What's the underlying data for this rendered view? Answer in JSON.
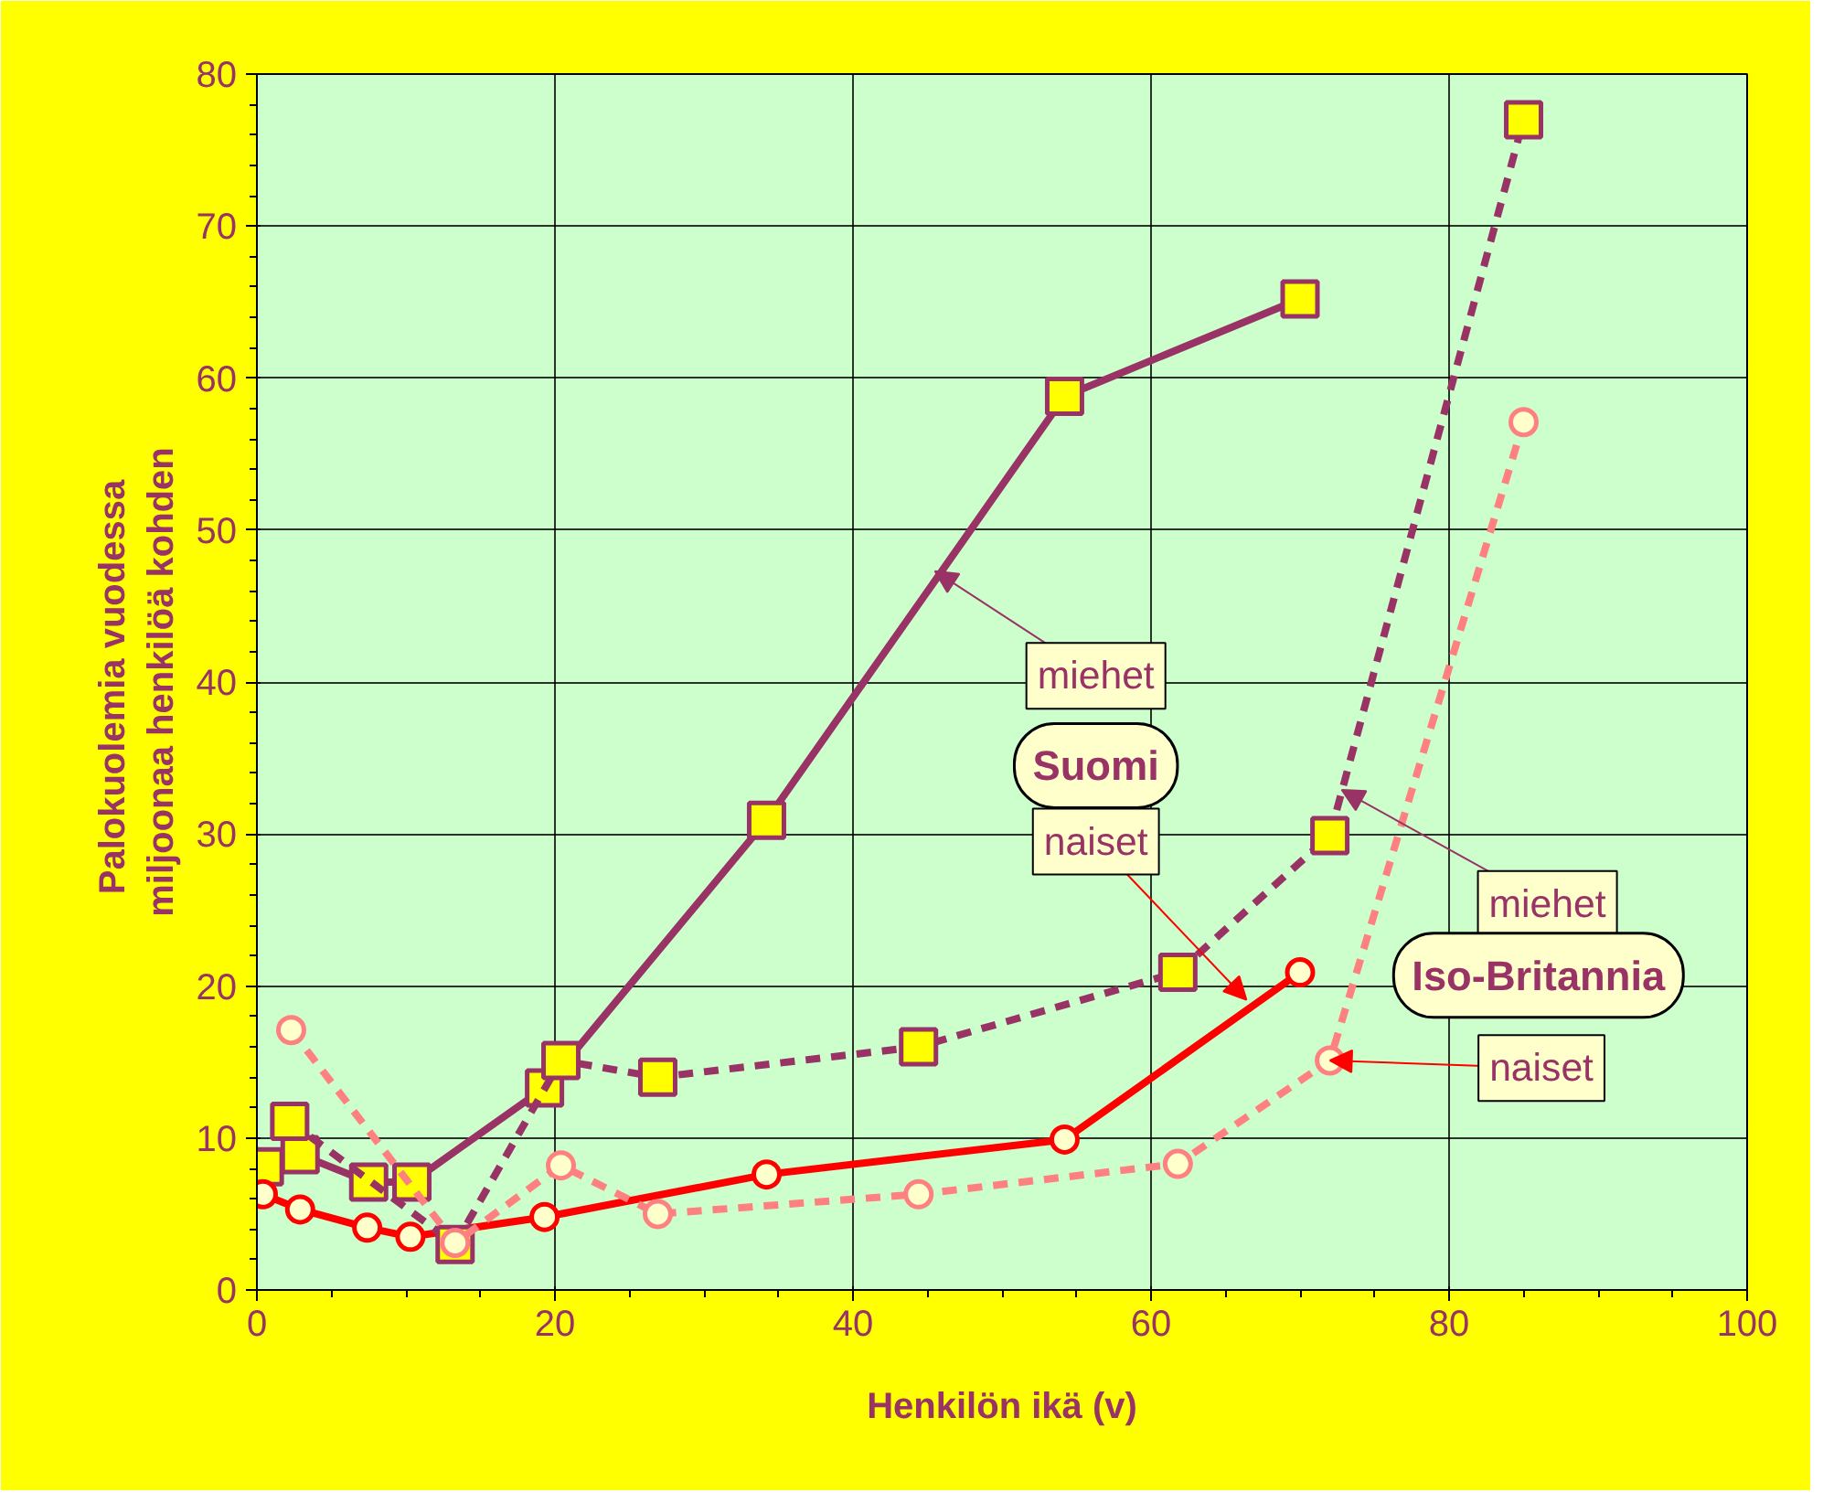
{
  "chart_data": {
    "type": "line",
    "xlabel": "Henkilön ikä (v)",
    "ylabel": "Palokuolemia  vuodessa\nmiljoonaa henkilöä kohden",
    "xlim": [
      0,
      100
    ],
    "xticks": [
      0,
      20,
      40,
      60,
      80,
      100
    ],
    "ylim": [
      0,
      80
    ],
    "yticks": [
      0,
      10,
      20,
      30,
      40,
      50,
      60,
      70,
      80
    ],
    "grid": true,
    "series": [
      {
        "color": "#993366",
        "marker": "square",
        "line_style": "solid",
        "x": [
          0.5,
          2.9,
          7.5,
          10.4,
          19.3,
          34.2,
          54.2,
          70.0
        ],
        "values": [
          8.1,
          8.9,
          7.1,
          7.1,
          13.3,
          30.9,
          58.8,
          65.2
        ]
      },
      {
        "color": "#ff0000",
        "marker": "circle",
        "line_style": "solid",
        "x": [
          0.4,
          2.9,
          7.4,
          10.3,
          19.3,
          34.2,
          54.2,
          70.0
        ],
        "values": [
          6.3,
          5.3,
          4.1,
          3.5,
          4.8,
          7.6,
          9.9,
          20.9
        ]
      },
      {
        "color": "#993366",
        "marker": "square",
        "line_style": "dashed",
        "x": [
          2.2,
          13.3,
          20.4,
          26.9,
          44.4,
          61.8,
          72.0,
          85.0
        ],
        "values": [
          11.1,
          3.0,
          15.1,
          14.0,
          16.0,
          20.9,
          29.9,
          77.0
        ]
      },
      {
        "color": "#ff8080",
        "marker": "circle",
        "line_style": "dashed",
        "x": [
          2.3,
          13.3,
          20.4,
          26.9,
          44.4,
          61.8,
          72.0,
          85.0
        ],
        "values": [
          17.1,
          3.1,
          8.2,
          5.0,
          6.3,
          8.3,
          15.1,
          57.1
        ]
      }
    ],
    "annotations": [
      {
        "text": "miehet",
        "x": 45.5,
        "y": 47.3
      },
      "Suomi",
      {
        "text": "naiset",
        "x": 66.4,
        "y": 19.1
      },
      {
        "text": "miehet",
        "x": 72.8,
        "y": 32.9
      },
      "Iso-Britannia",
      {
        "text": "naiset",
        "x": 72.0,
        "y": 15.1
      }
    ]
  }
}
